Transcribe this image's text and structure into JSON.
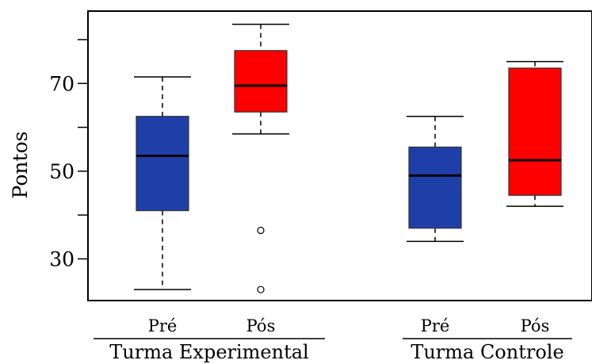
{
  "chart_data": {
    "type": "boxplot",
    "ylabel": "Pontos",
    "ylim": [
      20.5,
      86.5
    ],
    "yticks": [
      30,
      50,
      70
    ],
    "minor_yticks": [
      40,
      60,
      80
    ],
    "categories": [
      "Pré",
      "Pós",
      "Pré",
      "Pós"
    ],
    "groups": [
      {
        "name": "Turma Experimental",
        "categories": [
          0,
          1
        ]
      },
      {
        "name": "Turma Controle",
        "categories": [
          2,
          3
        ]
      }
    ],
    "colors": {
      "pre": "#1f3fa8",
      "pos": "#ff0000",
      "axis": "#000000"
    },
    "boxes": [
      {
        "category": "Pré",
        "group": "Turma Experimental",
        "fill": "#1f3fa8",
        "min": 23.0,
        "q1": 41.0,
        "median": 53.5,
        "q3": 62.5,
        "max": 71.5,
        "outliers": []
      },
      {
        "category": "Pós",
        "group": "Turma Experimental",
        "fill": "#ff0000",
        "min": 58.5,
        "q1": 63.5,
        "median": 69.5,
        "q3": 77.5,
        "max": 83.5,
        "outliers": [
          36.5,
          23.0
        ]
      },
      {
        "category": "Pré",
        "group": "Turma Controle",
        "fill": "#1f3fa8",
        "min": 34.0,
        "q1": 37.0,
        "median": 49.0,
        "q3": 55.5,
        "max": 62.5,
        "outliers": []
      },
      {
        "category": "Pós",
        "group": "Turma Controle",
        "fill": "#ff0000",
        "min": 42.0,
        "q1": 44.5,
        "median": 52.5,
        "q3": 73.5,
        "max": 75.0,
        "outliers": []
      }
    ]
  }
}
